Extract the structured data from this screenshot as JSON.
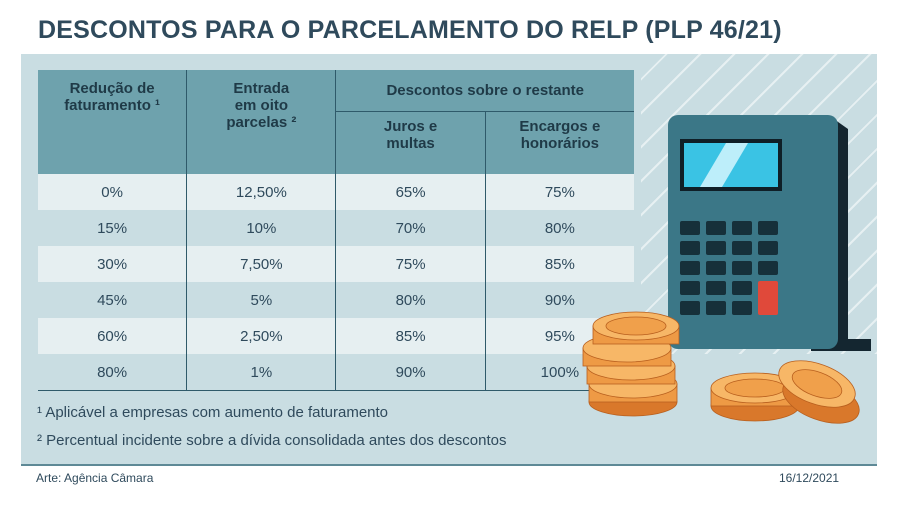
{
  "title": "DESCONTOS PARA O PARCELAMENTO DO RELP (PLP 46/21)",
  "table": {
    "headers": {
      "col1": [
        "Redução de",
        "faturamento ¹"
      ],
      "col2": [
        "Entrada",
        "em oito",
        "parcelas ²"
      ],
      "group": "Descontos sobre o restante",
      "col3": [
        "Juros e",
        "multas"
      ],
      "col4": [
        "Encargos e",
        "honorários"
      ]
    },
    "rows": [
      [
        "0%",
        "12,50%",
        "65%",
        "75%"
      ],
      [
        "15%",
        "10%",
        "70%",
        "80%"
      ],
      [
        "30%",
        "7,50%",
        "75%",
        "85%"
      ],
      [
        "45%",
        "5%",
        "80%",
        "90%"
      ],
      [
        "60%",
        "2,50%",
        "85%",
        "95%"
      ],
      [
        "80%",
        "1%",
        "90%",
        "100%"
      ]
    ]
  },
  "notes": [
    "¹ Aplicável a empresas com aumento de faturamento",
    "² Percentual incidente sobre a dívida consolidada antes dos descontos"
  ],
  "footer": {
    "credit": "Arte: Agência Câmara",
    "date": "16/12/2021"
  },
  "colors": {
    "header": "#6ea2ad",
    "panel": "#c9dde2",
    "title": "#2f4a5c",
    "coin": "#f0a04b",
    "calculator": "#3b7787"
  },
  "icons": [
    "calculator-icon",
    "coins-icon"
  ]
}
